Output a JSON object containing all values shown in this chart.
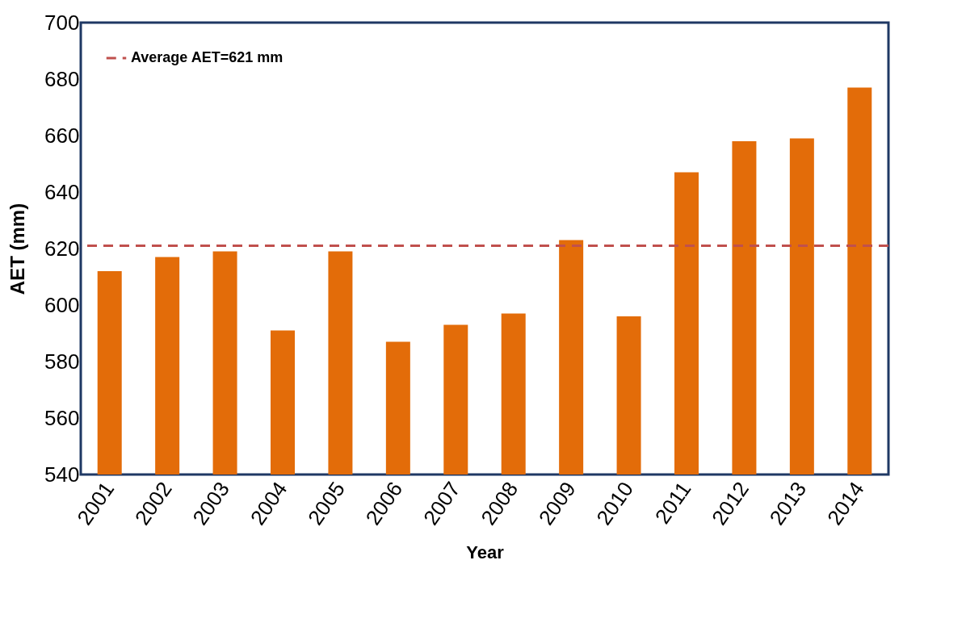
{
  "chart_data": {
    "type": "bar",
    "xlabel": "Year",
    "ylabel": "AET (mm)",
    "categories": [
      "2001",
      "2002",
      "2003",
      "2004",
      "2005",
      "2006",
      "2007",
      "2008",
      "2009",
      "2010",
      "2011",
      "2012",
      "2013",
      "2014"
    ],
    "values": [
      612,
      617,
      619,
      591,
      619,
      587,
      593,
      597,
      623,
      596,
      647,
      658,
      659,
      677
    ],
    "color": "#e36c09",
    "ylim": [
      540,
      700
    ],
    "yticks": [
      540,
      560,
      580,
      600,
      620,
      640,
      660,
      680,
      700
    ],
    "ref_lines": [
      {
        "axis": "y",
        "value": 621,
        "label": "Average AET=621 mm",
        "color": "#c0504d",
        "line_style": "dashed"
      }
    ],
    "legend": "top left",
    "grid": false
  }
}
